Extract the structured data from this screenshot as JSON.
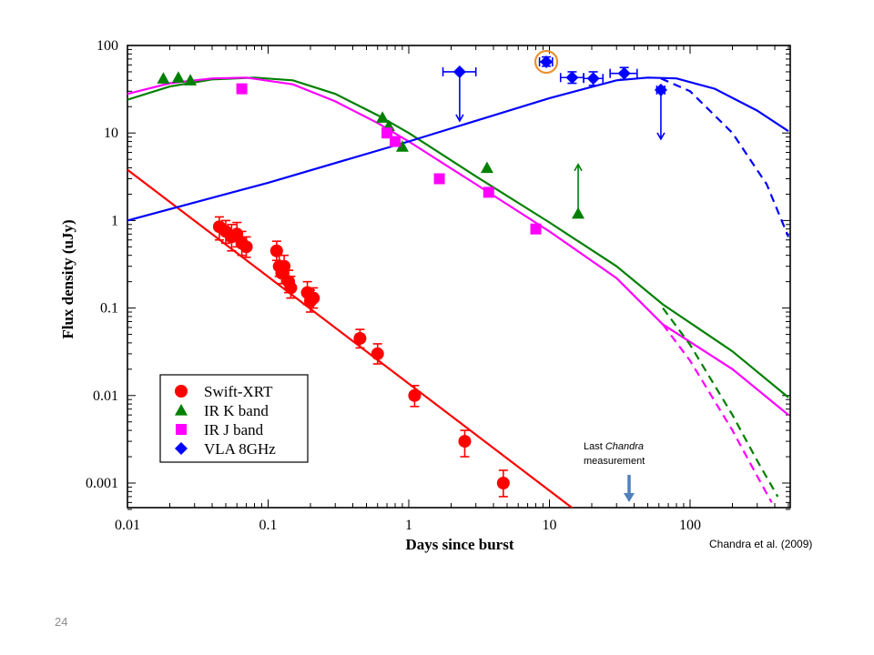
{
  "slide": {
    "page_number": "24"
  },
  "chart_data": {
    "type": "scatter",
    "xlabel": "Days since burst",
    "ylabel": "Flux density (uJy)",
    "xscale": "log",
    "yscale": "log",
    "xlim": [
      0.01,
      500
    ],
    "ylim": [
      0.0005,
      100
    ],
    "xticks": [
      0.01,
      0.1,
      1,
      10,
      100
    ],
    "xtick_labels": [
      "0.01",
      "0.1",
      "1",
      "10",
      "100"
    ],
    "yticks": [
      0.001,
      0.01,
      0.1,
      1,
      10,
      100
    ],
    "ytick_labels": [
      "0.001",
      "0.01",
      "0.1",
      "1",
      "10",
      "100"
    ],
    "grid": false,
    "legend_position": "bottom-left",
    "colors": {
      "xrt": "#ff0000",
      "kband": "#008000",
      "jband": "#ff00ff",
      "vla": "#0000ff",
      "highlight": "#e8922e",
      "arrow": "#4f81bd"
    },
    "series": [
      {
        "name": "Swift-XRT",
        "marker": "circle",
        "color": "#ff0000",
        "points": [
          {
            "x": 0.045,
            "y": 0.85,
            "ye": [
              0.6,
              1.1
            ]
          },
          {
            "x": 0.05,
            "y": 0.75,
            "ye": [
              0.55,
              1.0
            ]
          },
          {
            "x": 0.055,
            "y": 0.65,
            "ye": [
              0.45,
              0.9
            ]
          },
          {
            "x": 0.06,
            "y": 0.7,
            "ye": [
              0.5,
              0.95
            ]
          },
          {
            "x": 0.065,
            "y": 0.55,
            "ye": [
              0.4,
              0.75
            ]
          },
          {
            "x": 0.07,
            "y": 0.5,
            "ye": [
              0.38,
              0.65
            ]
          },
          {
            "x": 0.115,
            "y": 0.45,
            "ye": [
              0.35,
              0.58
            ]
          },
          {
            "x": 0.12,
            "y": 0.3,
            "ye": [
              0.23,
              0.4
            ]
          },
          {
            "x": 0.125,
            "y": 0.25,
            "ye": [
              0.19,
              0.33
            ]
          },
          {
            "x": 0.13,
            "y": 0.3,
            "ye": [
              0.23,
              0.4
            ]
          },
          {
            "x": 0.14,
            "y": 0.2,
            "ye": [
              0.15,
              0.27
            ]
          },
          {
            "x": 0.145,
            "y": 0.17,
            "ye": [
              0.13,
              0.23
            ]
          },
          {
            "x": 0.19,
            "y": 0.15,
            "ye": [
              0.11,
              0.2
            ]
          },
          {
            "x": 0.2,
            "y": 0.12,
            "ye": [
              0.09,
              0.16
            ]
          },
          {
            "x": 0.21,
            "y": 0.13,
            "ye": [
              0.1,
              0.17
            ]
          },
          {
            "x": 0.45,
            "y": 0.045,
            "ye": [
              0.035,
              0.057
            ]
          },
          {
            "x": 0.6,
            "y": 0.03,
            "ye": [
              0.023,
              0.039
            ]
          },
          {
            "x": 1.1,
            "y": 0.01,
            "ye": [
              0.0075,
              0.013
            ]
          },
          {
            "x": 2.5,
            "y": 0.003,
            "ye": [
              0.002,
              0.004
            ]
          },
          {
            "x": 4.7,
            "y": 0.001,
            "ye": [
              0.0007,
              0.0014
            ]
          }
        ]
      },
      {
        "name": "IR K band",
        "marker": "triangle",
        "color": "#008000",
        "points": [
          {
            "x": 0.018,
            "y": 42
          },
          {
            "x": 0.023,
            "y": 43
          },
          {
            "x": 0.028,
            "y": 40
          },
          {
            "x": 0.65,
            "y": 15
          },
          {
            "x": 0.72,
            "y": 12
          },
          {
            "x": 0.9,
            "y": 7
          },
          {
            "x": 3.6,
            "y": 4
          },
          {
            "x": 16,
            "y": 1.2,
            "limit": "lower"
          }
        ]
      },
      {
        "name": "IR J band",
        "marker": "square",
        "color": "#ff00ff",
        "points": [
          {
            "x": 0.065,
            "y": 32
          },
          {
            "x": 0.7,
            "y": 10
          },
          {
            "x": 0.8,
            "y": 8
          },
          {
            "x": 1.65,
            "y": 3
          },
          {
            "x": 3.7,
            "y": 2.1
          },
          {
            "x": 8,
            "y": 0.8
          }
        ]
      },
      {
        "name": "VLA 8GHz",
        "marker": "diamond",
        "color": "#0000ff",
        "points": [
          {
            "x": 2.3,
            "y": 50,
            "xe": [
              1.75,
              3.0
            ],
            "limit": "upper"
          },
          {
            "x": 9.5,
            "y": 65,
            "xe": [
              8.5,
              10.5
            ],
            "ye": [
              58,
              74
            ],
            "highlight": true
          },
          {
            "x": 14.5,
            "y": 43,
            "xe": [
              12,
              17.5
            ],
            "ye": [
              37,
              50
            ]
          },
          {
            "x": 20.5,
            "y": 42,
            "xe": [
              17.5,
              24
            ],
            "ye": [
              35,
              50
            ]
          },
          {
            "x": 34,
            "y": 48,
            "xe": [
              27,
              42
            ],
            "ye": [
              41,
              56
            ]
          },
          {
            "x": 62,
            "y": 31,
            "xe": [
              58,
              66
            ],
            "limit": "upper"
          }
        ]
      }
    ],
    "models": [
      {
        "series": "Swift-XRT",
        "color": "#ff0000",
        "style": "solid",
        "points": [
          [
            0.01,
            3.8
          ],
          [
            15,
            0.0005
          ]
        ]
      },
      {
        "series": "IR K band",
        "color": "#008000",
        "style": "solid",
        "points": [
          [
            0.01,
            24
          ],
          [
            0.02,
            34
          ],
          [
            0.04,
            41
          ],
          [
            0.08,
            43
          ],
          [
            0.15,
            40
          ],
          [
            0.3,
            28
          ],
          [
            0.6,
            16
          ],
          [
            1,
            10
          ],
          [
            3,
            3.2
          ],
          [
            10,
            0.95
          ],
          [
            30,
            0.3
          ],
          [
            64,
            0.11
          ],
          [
            200,
            0.032
          ],
          [
            500,
            0.0095
          ]
        ]
      },
      {
        "series": "IR J band",
        "color": "#ff00ff",
        "style": "solid",
        "points": [
          [
            0.01,
            28
          ],
          [
            0.02,
            37
          ],
          [
            0.04,
            42
          ],
          [
            0.07,
            43
          ],
          [
            0.15,
            36
          ],
          [
            0.3,
            23
          ],
          [
            0.6,
            13
          ],
          [
            1,
            8
          ],
          [
            3,
            2.6
          ],
          [
            10,
            0.75
          ],
          [
            30,
            0.22
          ],
          [
            64,
            0.065
          ],
          [
            200,
            0.02
          ],
          [
            500,
            0.006
          ]
        ]
      },
      {
        "series": "VLA 8GHz",
        "color": "#0000ff",
        "style": "solid",
        "points": [
          [
            0.01,
            1.0
          ],
          [
            0.1,
            2.7
          ],
          [
            1,
            8
          ],
          [
            10,
            25
          ],
          [
            30,
            40
          ],
          [
            50,
            43
          ],
          [
            80,
            42
          ],
          [
            150,
            32
          ],
          [
            300,
            18
          ],
          [
            500,
            10.5
          ]
        ]
      },
      {
        "series": "IR K band",
        "color": "#008000",
        "style": "dashed",
        "points": [
          [
            64,
            0.1
          ],
          [
            100,
            0.038
          ],
          [
            200,
            0.006
          ],
          [
            300,
            0.0018
          ],
          [
            420,
            0.0007
          ]
        ]
      },
      {
        "series": "IR J band",
        "color": "#ff00ff",
        "style": "dashed",
        "points": [
          [
            64,
            0.065
          ],
          [
            100,
            0.025
          ],
          [
            200,
            0.004
          ],
          [
            300,
            0.0012
          ],
          [
            380,
            0.0006
          ]
        ]
      },
      {
        "series": "VLA 8GHz",
        "color": "#0000ff",
        "style": "dashed",
        "points": [
          [
            62,
            42
          ],
          [
            100,
            30
          ],
          [
            200,
            10
          ],
          [
            350,
            2.6
          ],
          [
            500,
            0.65
          ]
        ]
      }
    ],
    "annotations": [
      {
        "text_prefix": "Last ",
        "text_emph": "Chandra",
        "text_line2": "measurement",
        "x": 10
      },
      {
        "text": "Chandra et al. (2009)"
      }
    ]
  }
}
